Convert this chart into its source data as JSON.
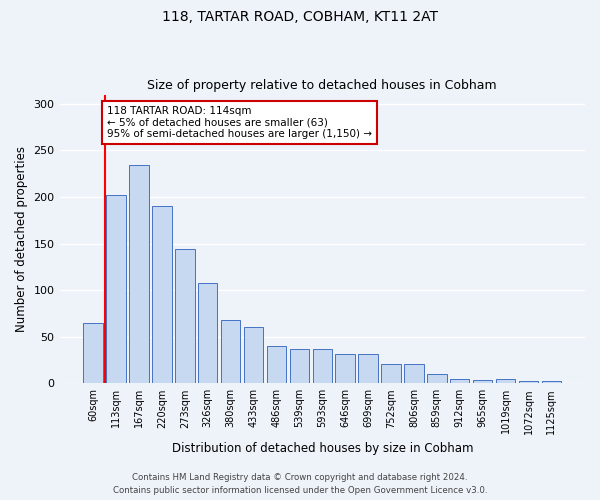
{
  "title1": "118, TARTAR ROAD, COBHAM, KT11 2AT",
  "title2": "Size of property relative to detached houses in Cobham",
  "xlabel": "Distribution of detached houses by size in Cobham",
  "ylabel": "Number of detached properties",
  "categories": [
    "60sqm",
    "113sqm",
    "167sqm",
    "220sqm",
    "273sqm",
    "326sqm",
    "380sqm",
    "433sqm",
    "486sqm",
    "539sqm",
    "593sqm",
    "646sqm",
    "699sqm",
    "752sqm",
    "806sqm",
    "859sqm",
    "912sqm",
    "965sqm",
    "1019sqm",
    "1072sqm",
    "1125sqm"
  ],
  "values": [
    65,
    202,
    234,
    190,
    144,
    108,
    68,
    60,
    40,
    37,
    37,
    31,
    31,
    21,
    21,
    10,
    5,
    4,
    5,
    2,
    2
  ],
  "bar_color": "#c6d9f0",
  "bar_edge_color": "#4472c4",
  "red_line_x": 1,
  "annotation_text": "118 TARTAR ROAD: 114sqm\n← 5% of detached houses are smaller (63)\n95% of semi-detached houses are larger (1,150) →",
  "ylim": [
    0,
    310
  ],
  "yticks": [
    0,
    50,
    100,
    150,
    200,
    250,
    300
  ],
  "footer1": "Contains HM Land Registry data © Crown copyright and database right 2024.",
  "footer2": "Contains public sector information licensed under the Open Government Licence v3.0.",
  "bg_color": "#eef2f9",
  "grid_color": "#ffffff",
  "annotation_box_facecolor": "#ffffff",
  "annotation_box_edgecolor": "#cc0000"
}
